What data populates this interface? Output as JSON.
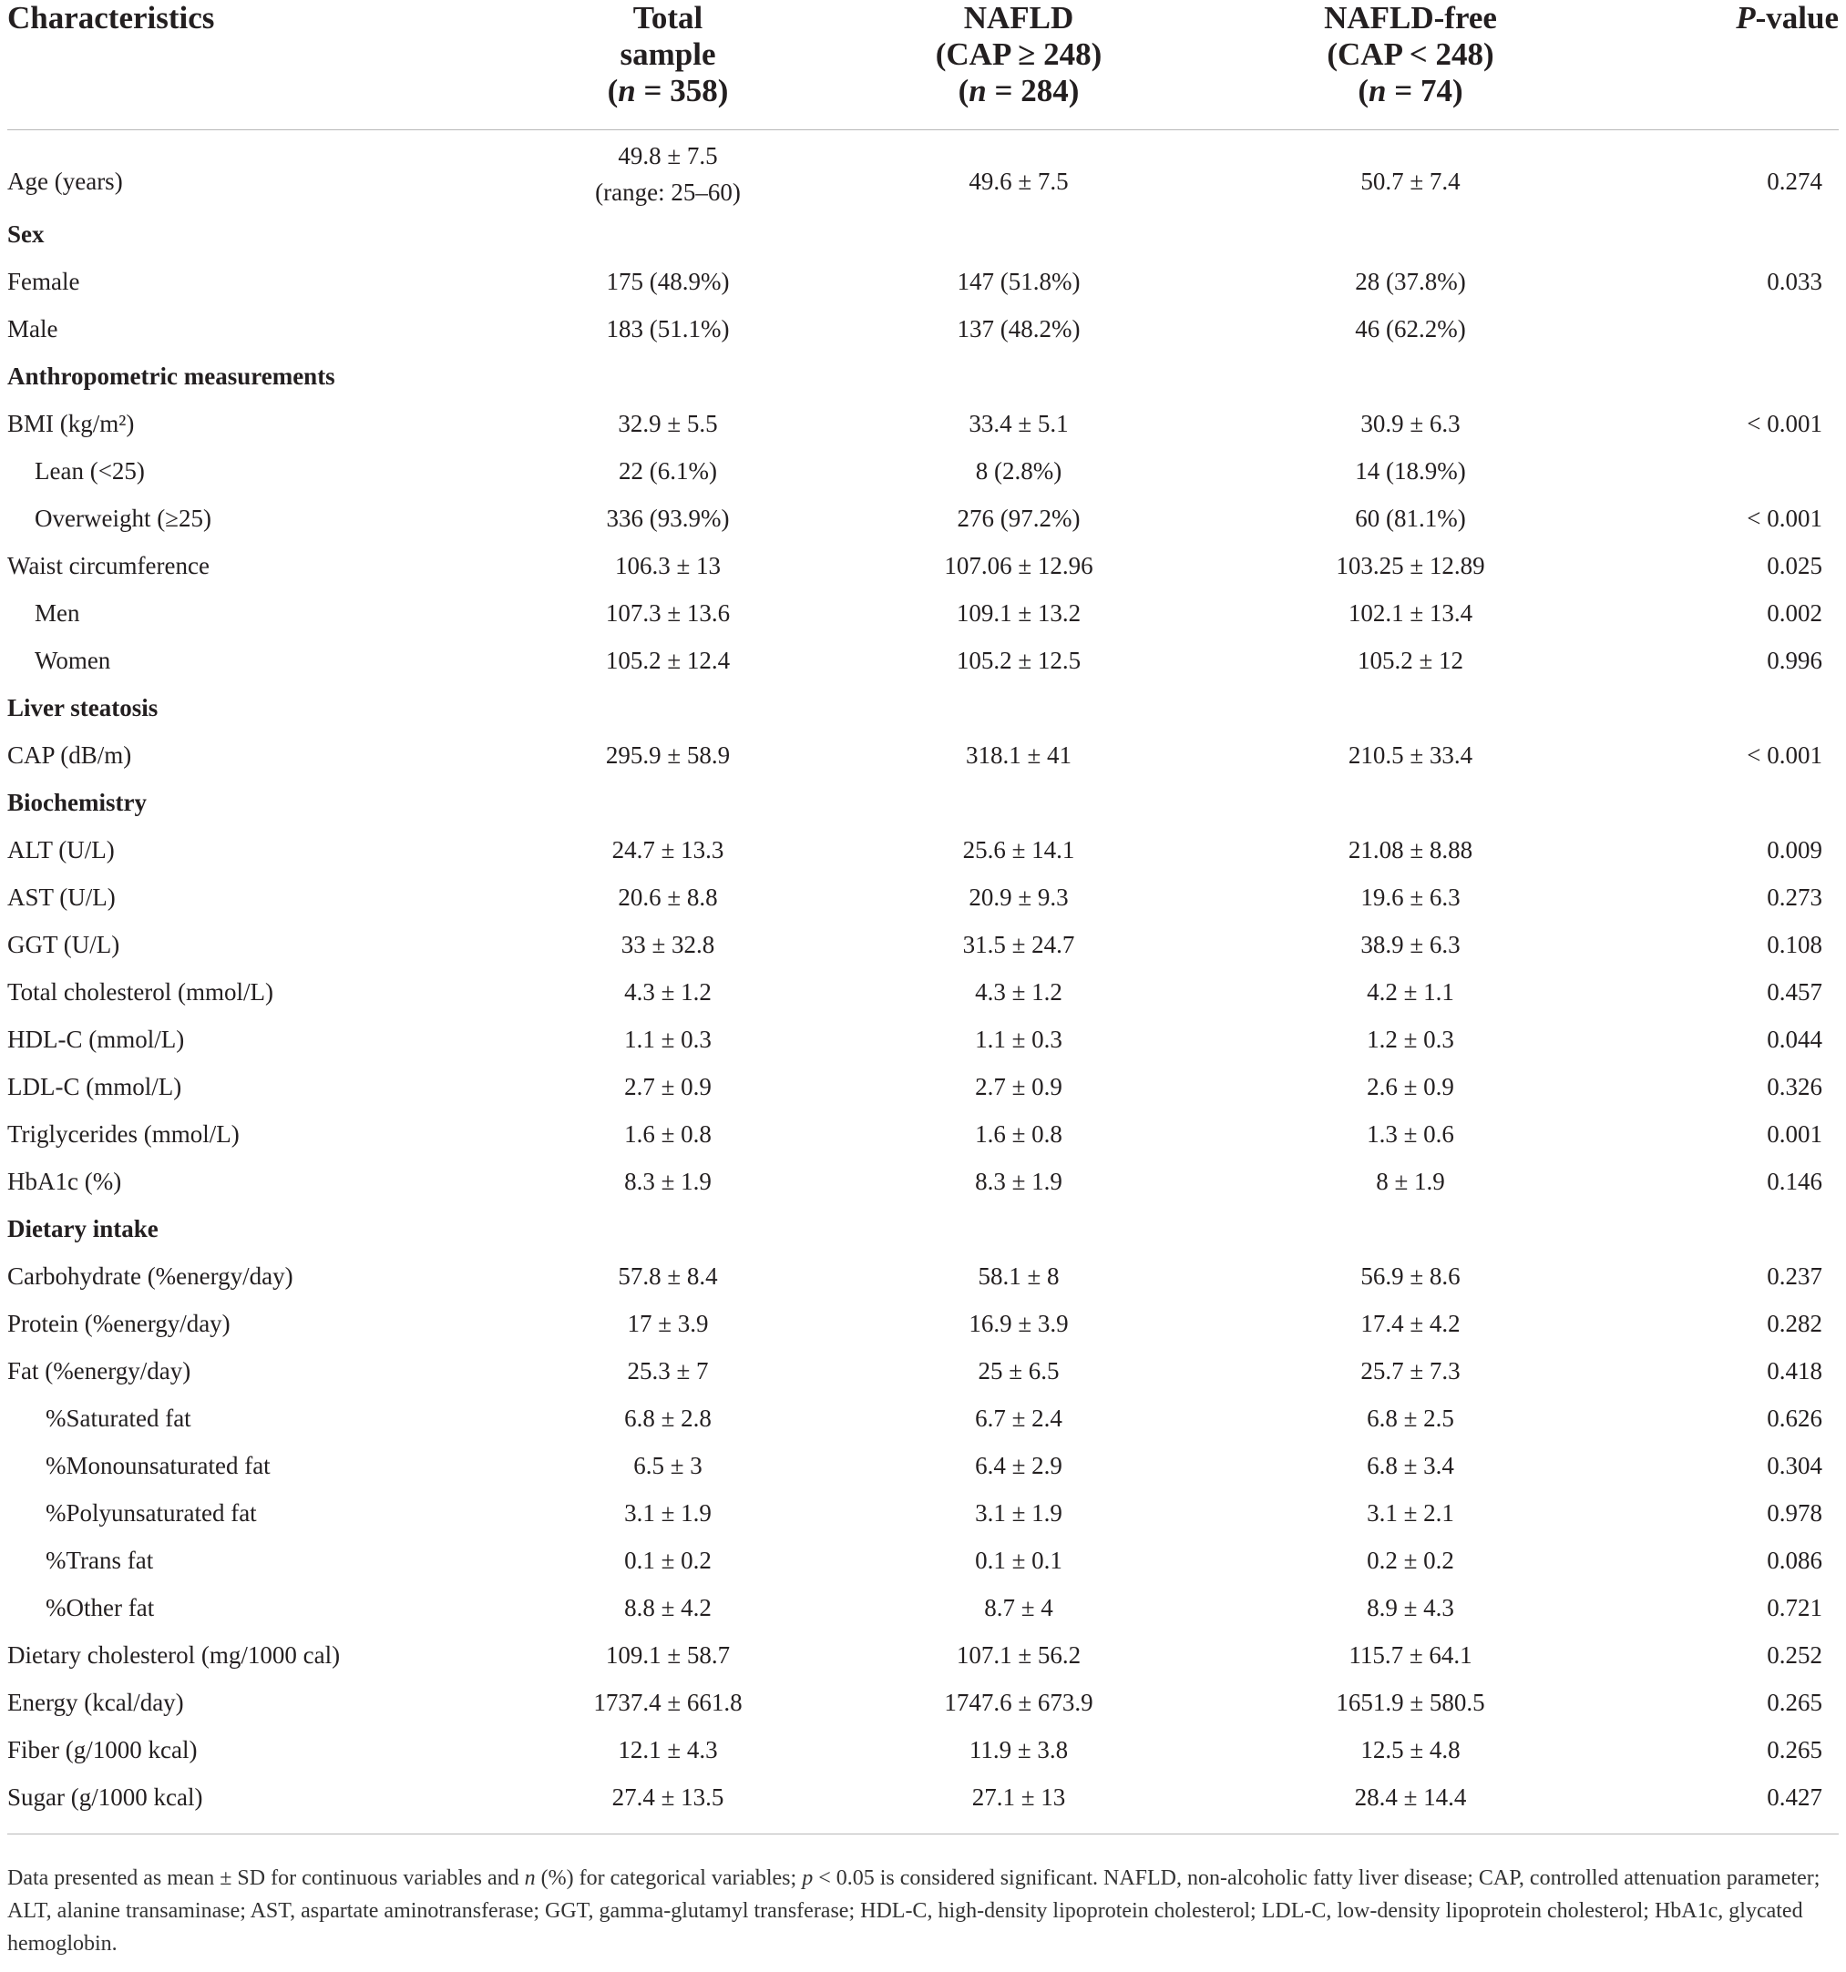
{
  "headers": [
    {
      "l1": "Characteristics"
    },
    {
      "l1": "Total",
      "l2": "sample",
      "l3": "(n = 358)"
    },
    {
      "l1": "NAFLD",
      "l2": "(CAP ≥ 248)",
      "l3": "(n = 284)"
    },
    {
      "l1": "NAFLD-free",
      "l2": "(CAP < 248)",
      "l3": "(n = 74)"
    },
    {
      "l1": "P-value"
    }
  ],
  "rows": [
    {
      "type": "data",
      "indent": 0,
      "label": "Age (years)",
      "total": "49.8 ± 7.5",
      "total_note": "(range: 25–60)",
      "nafld": "49.6 ± 7.5",
      "free": "50.7 ± 7.4",
      "p": "0.274"
    },
    {
      "type": "section",
      "label": "Sex"
    },
    {
      "type": "data",
      "indent": 0,
      "label": "Female",
      "total": "175 (48.9%)",
      "nafld": "147 (51.8%)",
      "free": "28 (37.8%)",
      "p": "0.033"
    },
    {
      "type": "data",
      "indent": 0,
      "label": "Male",
      "total": "183 (51.1%)",
      "nafld": "137 (48.2%)",
      "free": "46 (62.2%)",
      "p": ""
    },
    {
      "type": "section",
      "label": "Anthropometric measurements"
    },
    {
      "type": "data",
      "indent": 0,
      "label": "BMI (kg/m²)",
      "total": "32.9 ± 5.5",
      "nafld": "33.4 ± 5.1",
      "free": "30.9 ± 6.3",
      "p": "< 0.001"
    },
    {
      "type": "data",
      "indent": 1,
      "label": "Lean (<25)",
      "total": "22 (6.1%)",
      "nafld": "8 (2.8%)",
      "free": "14 (18.9%)",
      "p": ""
    },
    {
      "type": "data",
      "indent": 1,
      "label": "Overweight (≥25)",
      "total": "336 (93.9%)",
      "nafld": "276 (97.2%)",
      "free": "60 (81.1%)",
      "p": "< 0.001"
    },
    {
      "type": "data",
      "indent": 0,
      "label": "Waist circumference",
      "total": "106.3 ± 13",
      "nafld": "107.06 ± 12.96",
      "free": "103.25 ± 12.89",
      "p": "0.025"
    },
    {
      "type": "data",
      "indent": 1,
      "label": "Men",
      "total": "107.3 ± 13.6",
      "nafld": "109.1 ± 13.2",
      "free": "102.1 ± 13.4",
      "p": "0.002"
    },
    {
      "type": "data",
      "indent": 1,
      "label": "Women",
      "total": "105.2 ± 12.4",
      "nafld": "105.2 ± 12.5",
      "free": "105.2 ± 12",
      "p": "0.996"
    },
    {
      "type": "section",
      "label": "Liver steatosis"
    },
    {
      "type": "data",
      "indent": 0,
      "label": "CAP (dB/m)",
      "total": "295.9 ± 58.9",
      "nafld": "318.1 ± 41",
      "free": "210.5 ± 33.4",
      "p": "< 0.001"
    },
    {
      "type": "section",
      "label": "Biochemistry"
    },
    {
      "type": "data",
      "indent": 0,
      "label": "ALT (U/L)",
      "total": "24.7 ± 13.3",
      "nafld": "25.6 ± 14.1",
      "free": "21.08 ± 8.88",
      "p": "0.009"
    },
    {
      "type": "data",
      "indent": 0,
      "label": "AST (U/L)",
      "total": "20.6 ± 8.8",
      "nafld": "20.9 ± 9.3",
      "free": "19.6 ± 6.3",
      "p": "0.273"
    },
    {
      "type": "data",
      "indent": 0,
      "label": "GGT (U/L)",
      "total": "33 ± 32.8",
      "nafld": "31.5 ± 24.7",
      "free": "38.9 ± 6.3",
      "p": "0.108"
    },
    {
      "type": "data",
      "indent": 0,
      "label": "Total cholesterol (mmol/L)",
      "total": "4.3 ± 1.2",
      "nafld": "4.3 ± 1.2",
      "free": "4.2 ± 1.1",
      "p": "0.457"
    },
    {
      "type": "data",
      "indent": 0,
      "label": "HDL-C (mmol/L)",
      "total": "1.1 ± 0.3",
      "nafld": "1.1 ± 0.3",
      "free": "1.2 ± 0.3",
      "p": "0.044"
    },
    {
      "type": "data",
      "indent": 0,
      "label": "LDL-C (mmol/L)",
      "total": "2.7 ± 0.9",
      "nafld": "2.7 ± 0.9",
      "free": "2.6 ± 0.9",
      "p": "0.326"
    },
    {
      "type": "data",
      "indent": 0,
      "label": "Triglycerides (mmol/L)",
      "total": "1.6 ± 0.8",
      "nafld": "1.6 ± 0.8",
      "free": "1.3 ± 0.6",
      "p": "0.001"
    },
    {
      "type": "data",
      "indent": 0,
      "label": "HbA1c (%)",
      "total": "8.3 ± 1.9",
      "nafld": "8.3 ± 1.9",
      "free": "8 ± 1.9",
      "p": "0.146"
    },
    {
      "type": "section",
      "label": "Dietary intake"
    },
    {
      "type": "data",
      "indent": 0,
      "label": "Carbohydrate (%energy/day)",
      "total": "57.8 ± 8.4",
      "nafld": "58.1 ± 8",
      "free": "56.9 ± 8.6",
      "p": "0.237"
    },
    {
      "type": "data",
      "indent": 0,
      "label": "Protein (%energy/day)",
      "total": "17 ± 3.9",
      "nafld": "16.9 ± 3.9",
      "free": "17.4 ± 4.2",
      "p": "0.282"
    },
    {
      "type": "data",
      "indent": 0,
      "label": "Fat (%energy/day)",
      "total": "25.3 ± 7",
      "nafld": "25 ± 6.5",
      "free": "25.7 ± 7.3",
      "p": "0.418"
    },
    {
      "type": "data",
      "indent": 2,
      "label": "%Saturated fat",
      "total": "6.8 ± 2.8",
      "nafld": "6.7 ± 2.4",
      "free": "6.8 ± 2.5",
      "p": "0.626"
    },
    {
      "type": "data",
      "indent": 2,
      "label": "%Monounsaturated fat",
      "total": "6.5 ± 3",
      "nafld": "6.4 ± 2.9",
      "free": "6.8 ± 3.4",
      "p": "0.304"
    },
    {
      "type": "data",
      "indent": 2,
      "label": "%Polyunsaturated fat",
      "total": "3.1 ± 1.9",
      "nafld": "3.1 ± 1.9",
      "free": "3.1 ± 2.1",
      "p": "0.978"
    },
    {
      "type": "data",
      "indent": 2,
      "label": "%Trans fat",
      "total": "0.1 ± 0.2",
      "nafld": "0.1 ± 0.1",
      "free": "0.2 ± 0.2",
      "p": "0.086"
    },
    {
      "type": "data",
      "indent": 2,
      "label": "%Other fat",
      "total": "8.8 ± 4.2",
      "nafld": "8.7 ± 4",
      "free": "8.9 ± 4.3",
      "p": "0.721"
    },
    {
      "type": "data",
      "indent": 0,
      "label": "Dietary cholesterol (mg/1000 cal)",
      "total": "109.1 ± 58.7",
      "nafld": "107.1 ± 56.2",
      "free": "115.7 ± 64.1",
      "p": "0.252"
    },
    {
      "type": "data",
      "indent": 0,
      "label": "Energy (kcal/day)",
      "total": "1737.4 ± 661.8",
      "nafld": "1747.6 ± 673.9",
      "free": "1651.9 ± 580.5",
      "p": "0.265"
    },
    {
      "type": "data",
      "indent": 0,
      "label": "Fiber (g/1000 kcal)",
      "total": "12.1 ± 4.3",
      "nafld": "11.9 ± 3.8",
      "free": "12.5 ± 4.8",
      "p": "0.265"
    },
    {
      "type": "data",
      "indent": 0,
      "label": "Sugar (g/1000 kcal)",
      "total": "27.4 ± 13.5",
      "nafld": "27.1 ± 13",
      "free": "28.4 ± 14.4",
      "p": "0.427"
    }
  ],
  "footnote": "Data presented as mean ± SD for continuous variables and n (%) for categorical variables; p < 0.05 is considered significant. NAFLD, non-alcoholic fatty liver disease; CAP, controlled attenuation parameter; ALT, alanine transaminase; AST, aspartate aminotransferase; GGT, gamma-glutamyl transferase; HDL-C, high-density lipoprotein cholesterol; LDL-C, low-density lipoprotein cholesterol; HbA1c, glycated hemoglobin."
}
